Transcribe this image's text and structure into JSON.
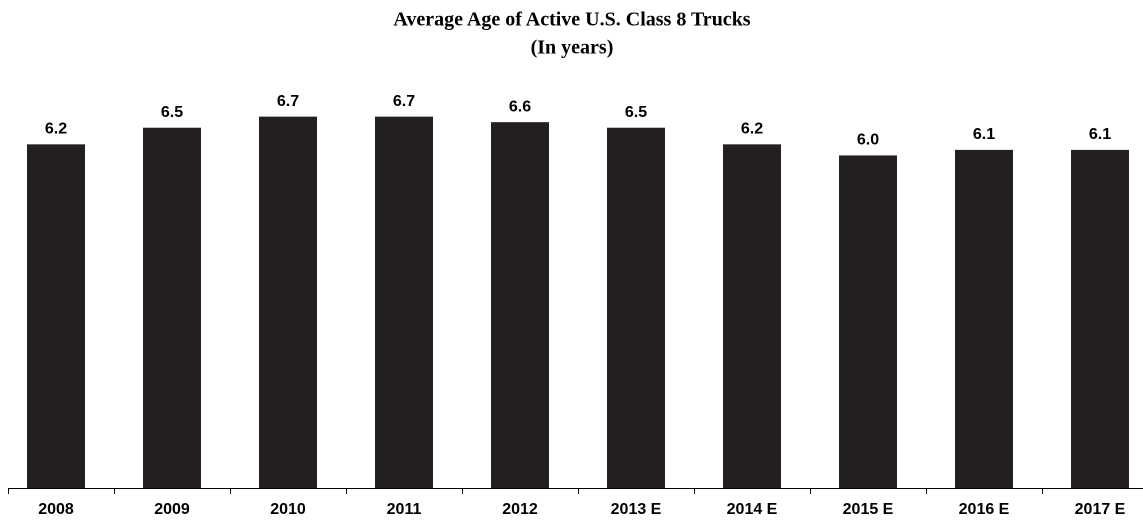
{
  "chart_data": {
    "type": "bar",
    "title": "Average Age of Active U.S. Class 8 Trucks",
    "subtitle": "(In years)",
    "categories": [
      "2008",
      "2009",
      "2010",
      "2011",
      "2012",
      "2013 E",
      "2014 E",
      "2015 E",
      "2016 E",
      "2017 E"
    ],
    "values": [
      6.2,
      6.5,
      6.7,
      6.7,
      6.6,
      6.5,
      6.2,
      6.0,
      6.1,
      6.1
    ],
    "value_labels": [
      "6.2",
      "6.5",
      "6.7",
      "6.7",
      "6.6",
      "6.5",
      "6.2",
      "6.0",
      "6.1",
      "6.1"
    ],
    "color": "#231f20",
    "ylim": [
      0,
      7
    ],
    "grid": false
  }
}
